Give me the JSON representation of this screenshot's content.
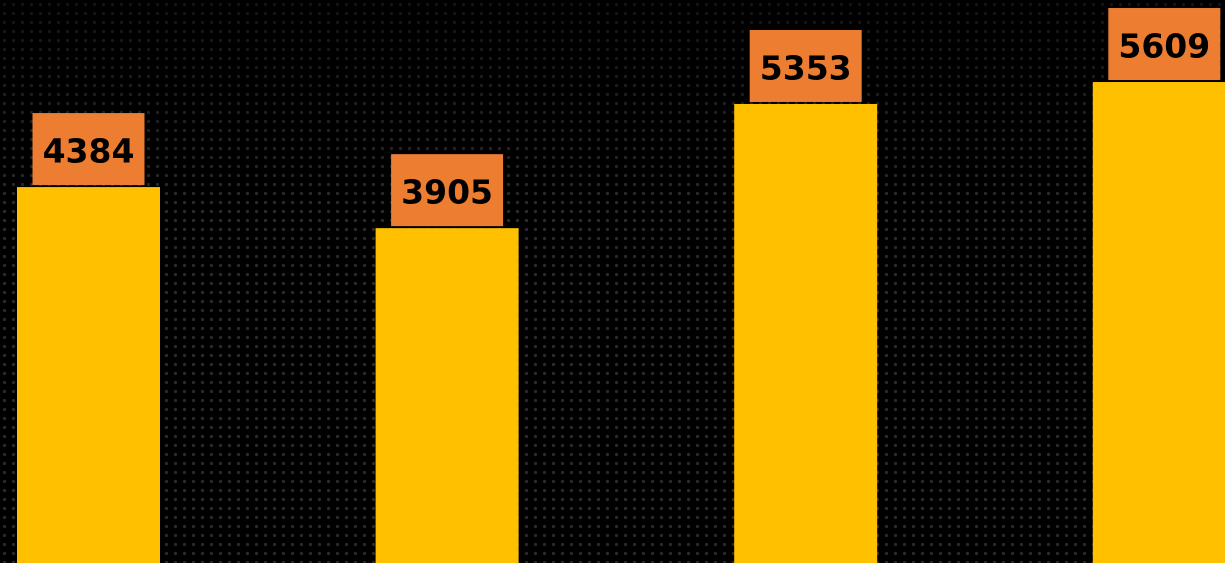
{
  "chart_data": {
    "type": "bar",
    "categories": [
      null,
      null,
      null,
      null
    ],
    "values": [
      4384,
      3905,
      5353,
      5609
    ],
    "color": "#ffc000",
    "label_color": "#ed7d31"
  }
}
